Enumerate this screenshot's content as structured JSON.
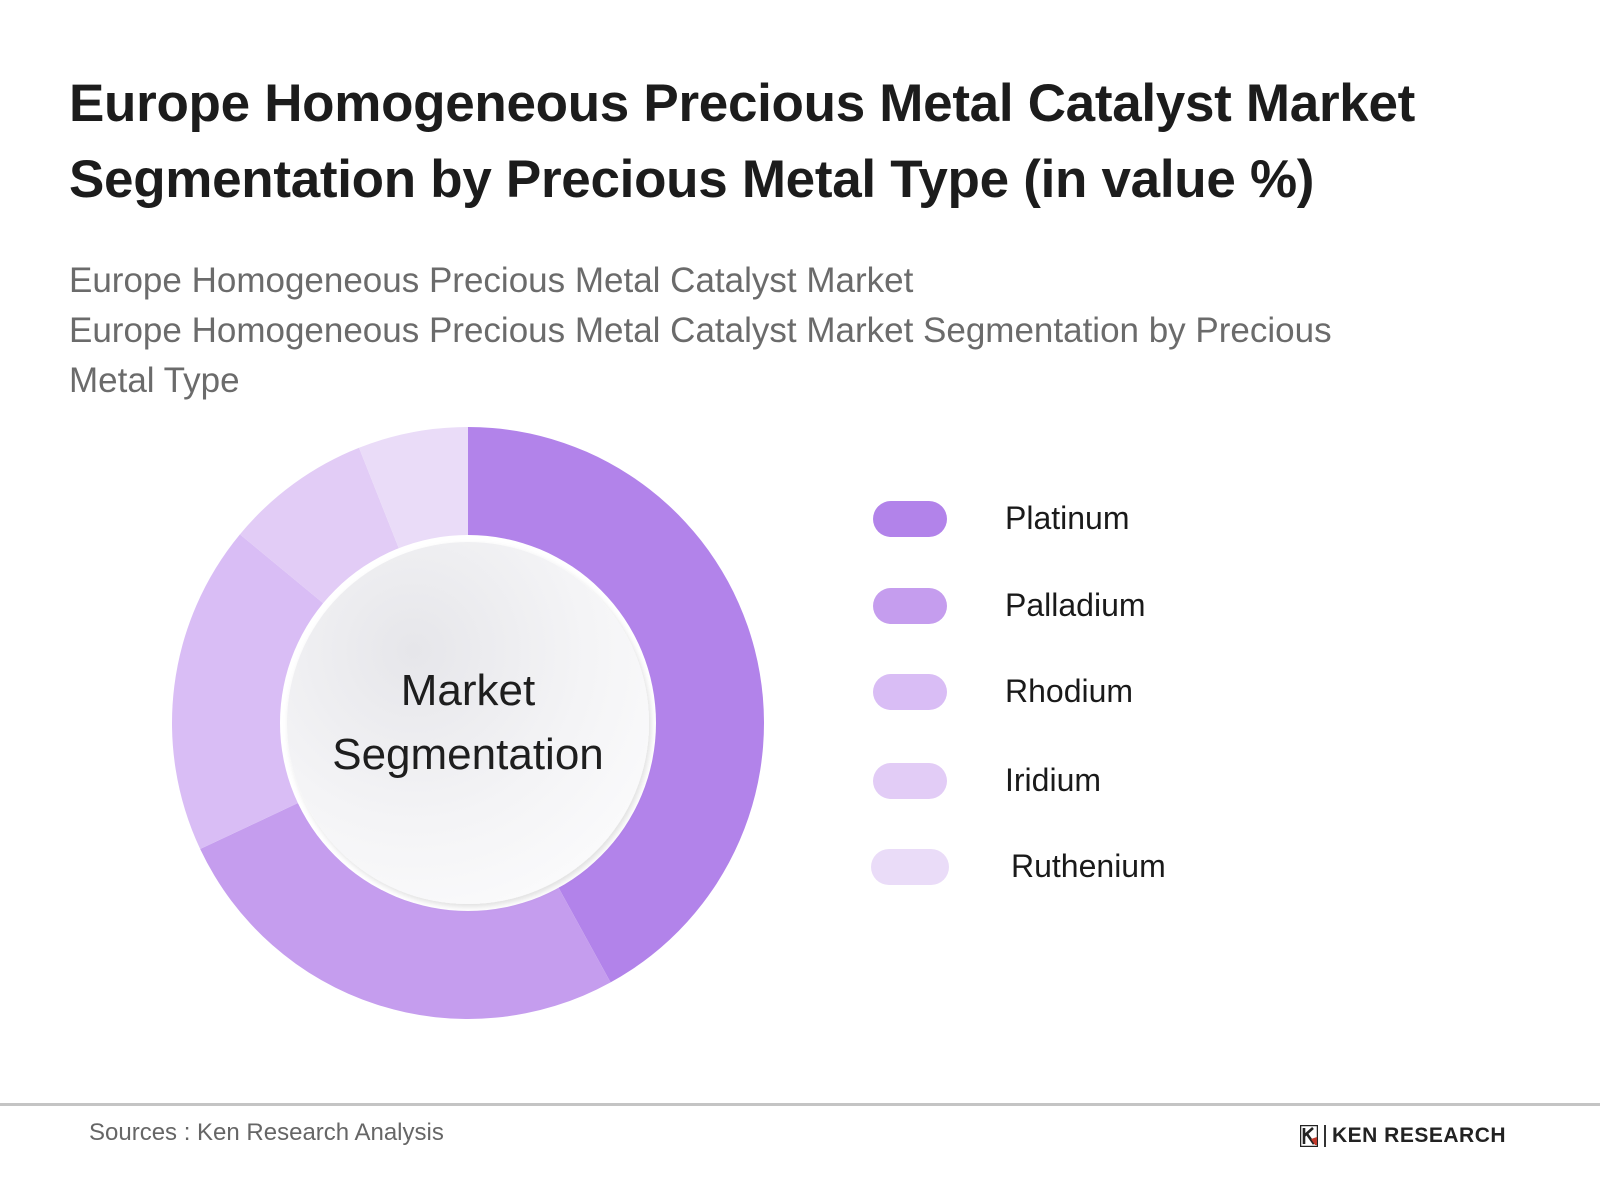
{
  "header": {
    "title_line1": "Europe Homogeneous Precious Metal Catalyst Market",
    "title_line2": "Segmentation by Precious Metal Type (in value %)",
    "subtitle_line1": "Europe Homogeneous Precious Metal Catalyst Market",
    "subtitle_line2": "Europe Homogeneous Precious Metal Catalyst Market Segmentation by Precious",
    "subtitle_line3": "Metal Type"
  },
  "center_label": {
    "line1": "Market",
    "line2": "Segmentation"
  },
  "legend": {
    "items": [
      {
        "label": "Platinum",
        "color": "#b283ea"
      },
      {
        "label": "Palladium",
        "color": "#c59dee"
      },
      {
        "label": "Rhodium",
        "color": "#d9bdf5"
      },
      {
        "label": "Iridium",
        "color": "#e2ccf6"
      },
      {
        "label": "Ruthenium",
        "color": "#eadcf8"
      }
    ]
  },
  "footer": {
    "source": "Sources : Ken Research Analysis",
    "brand": "KEN RESEARCH"
  },
  "chart_data": {
    "type": "pie",
    "subtype": "donut",
    "title": "Europe Homogeneous Precious Metal Catalyst Market Segmentation by Precious Metal Type (in value %)",
    "subtitle": "Europe Homogeneous Precious Metal Catalyst Market Segmentation by Precious Metal Type",
    "center_text": "Market Segmentation",
    "categories": [
      "Platinum",
      "Palladium",
      "Rhodium",
      "Iridium",
      "Ruthenium"
    ],
    "values": [
      42,
      26,
      18,
      8,
      6
    ],
    "unit": "%",
    "colors": [
      "#b283ea",
      "#c59dee",
      "#d9bdf5",
      "#e2ccf6",
      "#eadcf8"
    ],
    "start_angle_deg": 0,
    "direction": "clockwise",
    "legend_position": "right",
    "data_labels": false
  }
}
